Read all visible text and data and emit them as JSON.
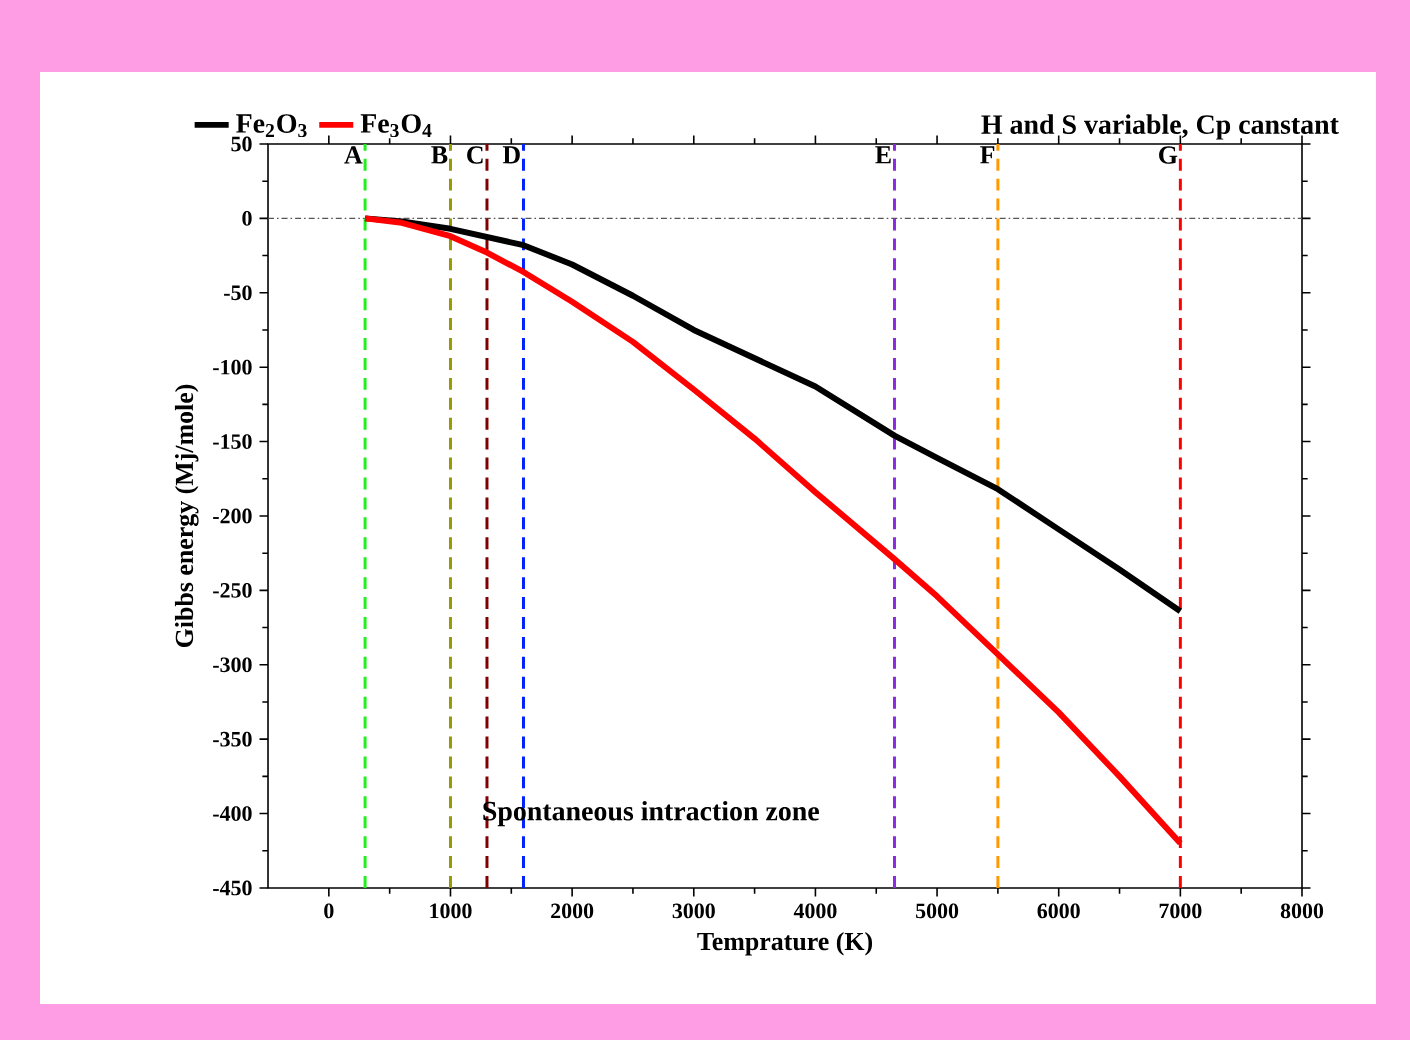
{
  "chart_data": {
    "type": "line",
    "title": "H and S variable, Cp canstant",
    "xlabel": "Temprature (K)",
    "ylabel": "Gibbs energy (Mj/mole)",
    "xlim": [
      -500,
      8000
    ],
    "xticks": [
      0,
      1000,
      2000,
      3000,
      4000,
      5000,
      6000,
      7000,
      8000
    ],
    "ylim": [
      -450,
      50
    ],
    "yticks": [
      -450,
      -400,
      -350,
      -300,
      -250,
      -200,
      -150,
      -100,
      -50,
      0,
      50
    ],
    "series": [
      {
        "name": "Fe$_{2}$O$_{3}$",
        "color": "#000000",
        "x": [
          298,
          600,
          1000,
          1600,
          2000,
          2500,
          3000,
          3500,
          4000,
          4650,
          5000,
          5500,
          6000,
          6500,
          7000
        ],
        "values": [
          0,
          -2,
          -7,
          -18,
          -31,
          -52,
          -75,
          -94,
          -113,
          -146,
          -161,
          -182,
          -209,
          -236,
          -264
        ]
      },
      {
        "name": "Fe$_{3}$O$_{4}$",
        "color": "#ff0000",
        "x": [
          298,
          600,
          1000,
          1300,
          1600,
          2000,
          2500,
          3000,
          3500,
          4000,
          4650,
          5000,
          5500,
          6000,
          6500,
          7000
        ],
        "values": [
          0,
          -3,
          -12,
          -23,
          -36,
          -56,
          -83,
          -115,
          -148,
          -184,
          -229,
          -254,
          -293,
          -332,
          -375,
          -420
        ]
      }
    ],
    "ref_lines": [
      {
        "axis": "y",
        "value": 0,
        "color": "#555555",
        "line_style": "dotted"
      },
      {
        "axis": "x",
        "value": 298,
        "label": "A",
        "color": "#22ee22",
        "line_style": "dashed"
      },
      {
        "axis": "x",
        "value": 1000,
        "label": "B",
        "color": "#999900",
        "line_style": "dashed"
      },
      {
        "axis": "x",
        "value": 1300,
        "label": "C",
        "color": "#800000",
        "line_style": "dashed"
      },
      {
        "axis": "x",
        "value": 1600,
        "label": "D",
        "color": "#0022ff",
        "line_style": "dashed"
      },
      {
        "axis": "x",
        "value": 4650,
        "label": "E",
        "color": "#8a2be2",
        "line_style": "dashed"
      },
      {
        "axis": "x",
        "value": 5500,
        "label": "F",
        "color": "#ff9900",
        "line_style": "dashed"
      },
      {
        "axis": "x",
        "value": 7000,
        "label": "G",
        "color": "#ff0000",
        "line_style": "dashed"
      }
    ],
    "annotations": [
      "Spontaneous intraction zone"
    ],
    "legend": "top",
    "grid": false,
    "line_style": "solid",
    "marker": "none"
  }
}
